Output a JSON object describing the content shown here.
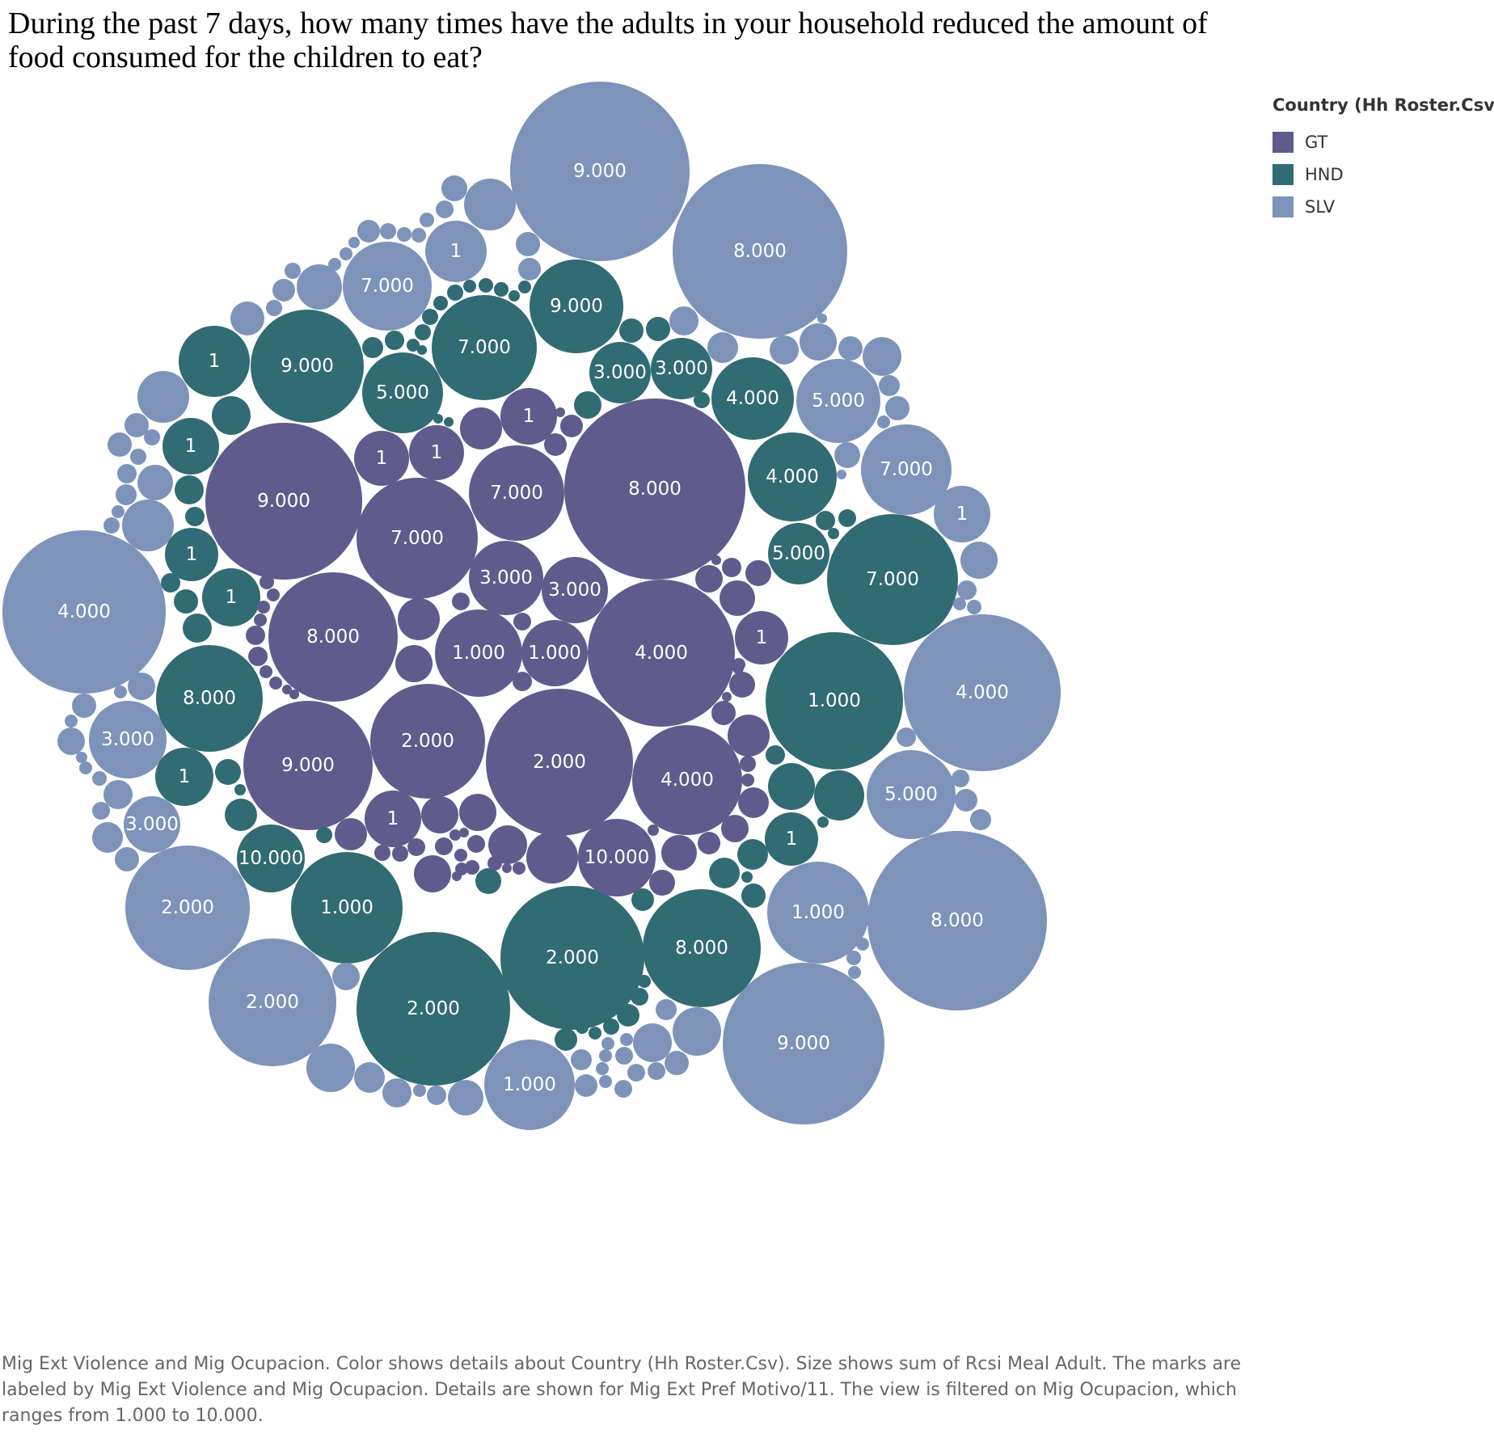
{
  "chart_data": {
    "type": "packed-bubble",
    "title": "During the past 7 days, how many times have the adults in your household reduced the amount of food consumed for the children to eat?",
    "legend": {
      "title": "Country (Hh Roster.Csv)",
      "placement": "top-right",
      "items": [
        {
          "name": "GT",
          "color": "#5f5b8c"
        },
        {
          "name": "HND",
          "color": "#316b73"
        },
        {
          "name": "SLV",
          "color": "#7d93ba"
        }
      ]
    },
    "caption": "Mig Ext Violence and Mig Ocupacion.  Color shows details about Country (Hh Roster.Csv).  Size shows sum of Rcsi Meal Adult.  The marks are labeled by Mig Ext Violence and Mig Ocupacion.  Details are shown for Mig Ext Pref Motivo/11. The view is filtered on Mig Ocupacion, which ranges from 1.000 to 10.000."
  }
}
